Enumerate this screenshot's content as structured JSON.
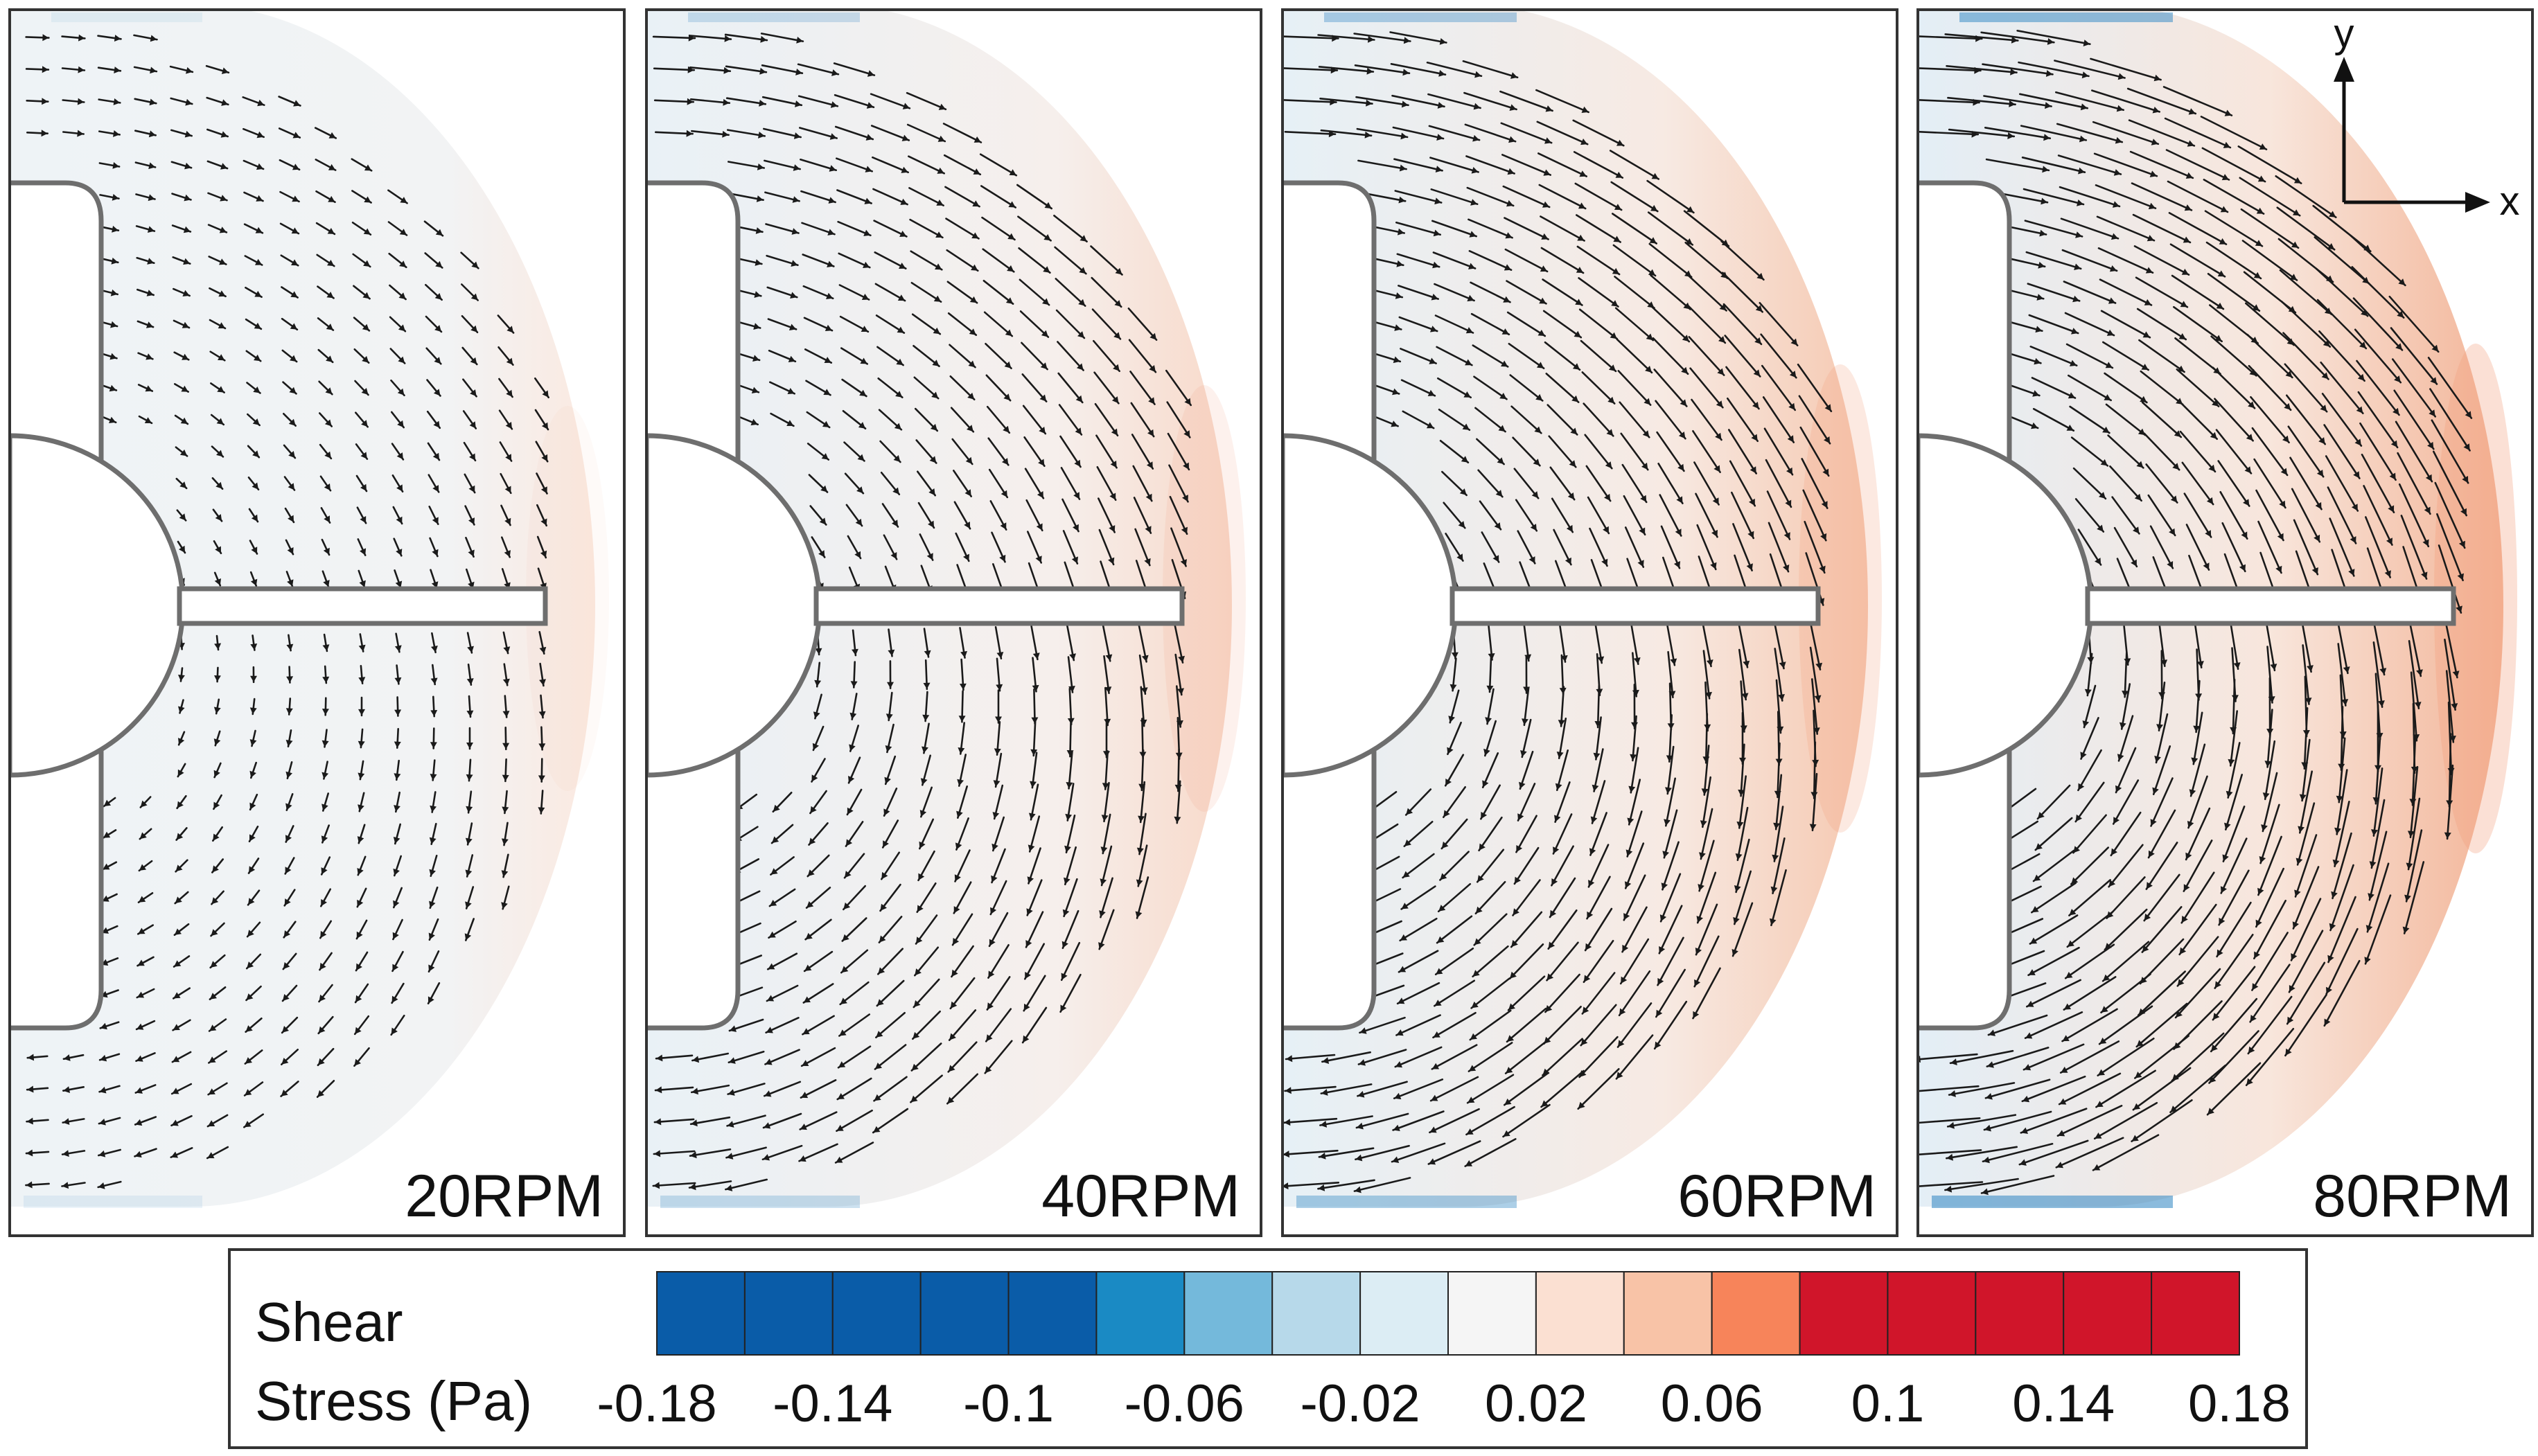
{
  "chart_data": {
    "type": "heatmap",
    "title": "",
    "description_of_marks": "vector-field",
    "panels": [
      {
        "label": "20RPM",
        "rpm": 20,
        "arrow_scale": 0.55
      },
      {
        "label": "40RPM",
        "rpm": 40,
        "arrow_scale": 1.0
      },
      {
        "label": "60RPM",
        "rpm": 60,
        "arrow_scale": 1.35
      },
      {
        "label": "80RPM",
        "rpm": 80,
        "arrow_scale": 1.75
      }
    ],
    "axes_indicator": {
      "x_label": "x",
      "y_label": "y"
    },
    "colorbar": {
      "title_line1": "Shear",
      "title_line2": "Stress (Pa)",
      "range": [
        -0.18,
        0.18
      ],
      "tick_labels": [
        "-0.18",
        "-0.14",
        "-0.1",
        "-0.06",
        "-0.02",
        "0.02",
        "0.06",
        "0.1",
        "0.14",
        "0.18"
      ],
      "colors": [
        "#0a5ca8",
        "#0a5ca8",
        "#0a5ca8",
        "#0a5ca8",
        "#0a5ca8",
        "#1a8ac4",
        "#74b9db",
        "#b7d9ea",
        "#dcedf4",
        "#f5f5f5",
        "#fbe0d2",
        "#f8c3a7",
        "#f7845a",
        "#d0152a",
        "#d0152a",
        "#d0152a",
        "#d0152a",
        "#d0152a"
      ]
    }
  }
}
